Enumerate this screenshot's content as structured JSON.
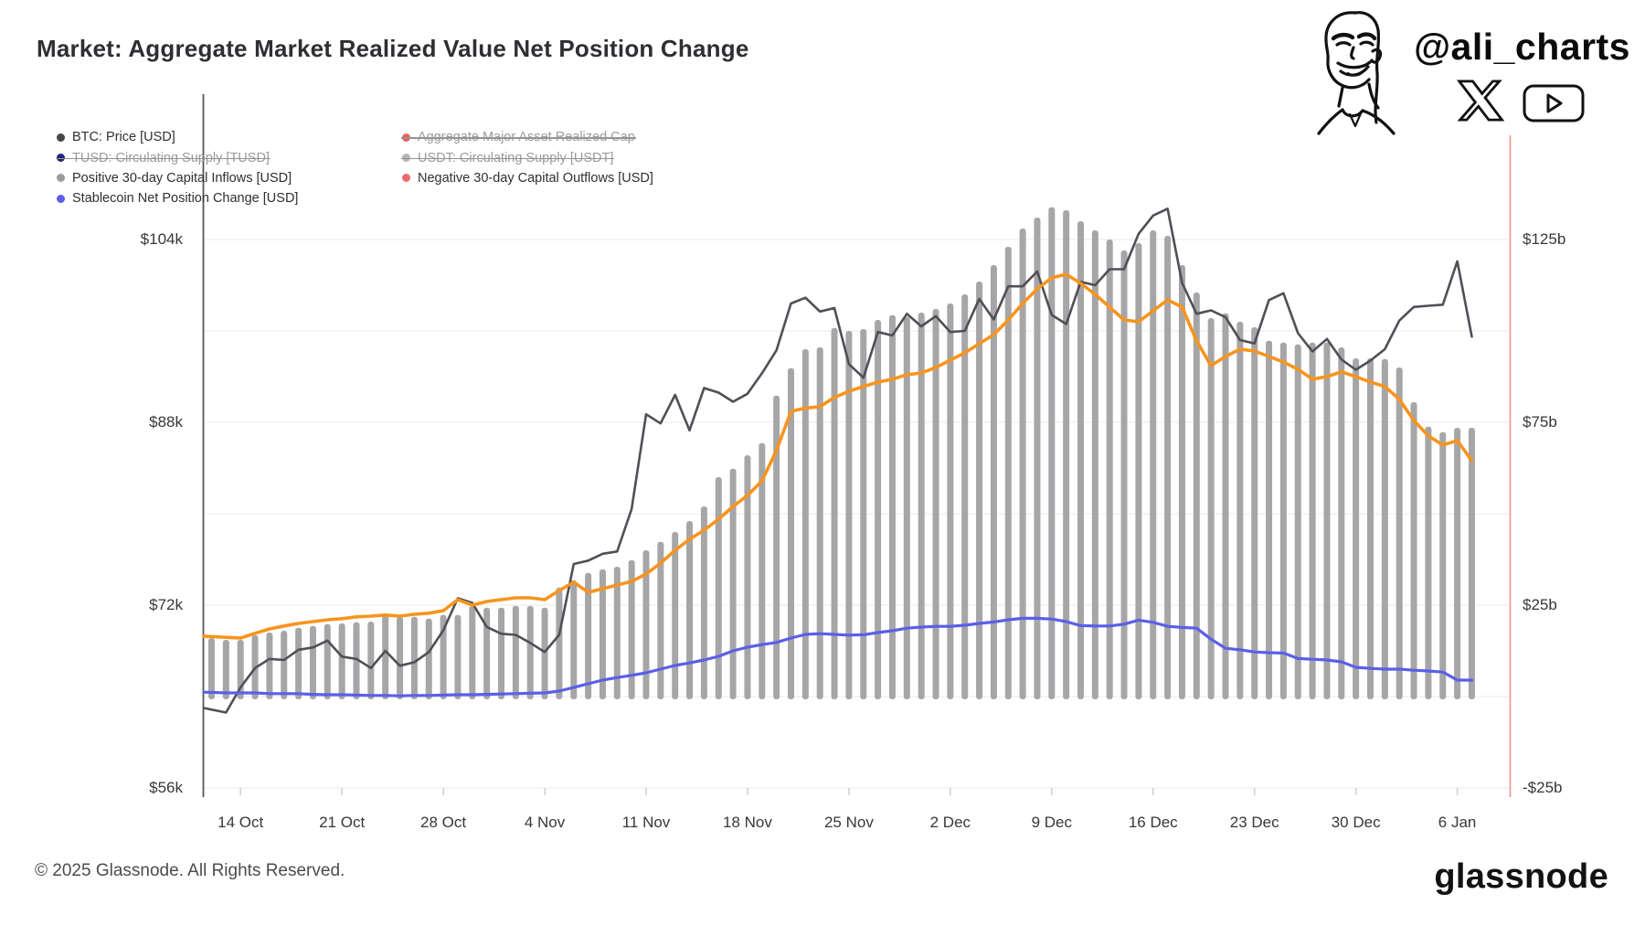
{
  "header": {
    "title": "Market: Aggregate Market Realized Value Net Position Change"
  },
  "branding": {
    "handle": "@ali_charts",
    "icons": [
      "face-sketch-icon",
      "x-logo-icon",
      "youtube-logo-icon"
    ]
  },
  "footer": {
    "copyright": "© 2025 Glassnode. All Rights Reserved.",
    "brand": "glassnode"
  },
  "colors": {
    "background": "#ffffff",
    "btc_line": "#4f4f56",
    "orange_line": "#f7941d",
    "stablecoin_line": "#5a5fe8",
    "inflow_bars": "#a6a6a8",
    "negative_bars": "#f26969",
    "gridline": "#ededed",
    "left_spine": "#55555a",
    "right_spine": "#e98d8d",
    "struck_legend_text": "#9b9b9b"
  },
  "legend": [
    {
      "id": "btc-price",
      "label": "BTC: Price [USD]",
      "color": "#46464c",
      "struck": false,
      "col": 1
    },
    {
      "id": "aggregate-realized-cap",
      "label": "Aggregate Major Asset Realized Cap",
      "color": "#ed5e5e",
      "struck": true,
      "col": 2
    },
    {
      "id": "tusd-supply",
      "label": "TUSD: Circulating Supply [TUSD]",
      "color": "#24247a",
      "struck": true,
      "col": 1
    },
    {
      "id": "usdt-supply",
      "label": "USDT: Circulating Supply [USDT]",
      "color": "#b5b5b5",
      "struck": true,
      "col": 2
    },
    {
      "id": "positive-inflows",
      "label": "Positive 30-day Capital Inflows [USD]",
      "color": "#9c9c9e",
      "struck": false,
      "col": 1
    },
    {
      "id": "negative-outflows",
      "label": "Negative 30-day Capital Outflows [USD]",
      "color": "#f26969",
      "struck": false,
      "col": 2
    },
    {
      "id": "stablecoin-npc",
      "label": "Stablecoin Net Position Change [USD]",
      "color": "#5a5fe8",
      "struck": false,
      "col": 1
    }
  ],
  "chart_data": {
    "type": "mixed bar + line, dual y-axis, daily data",
    "title": "Market: Aggregate Market Realized Value Net Position Change",
    "x_start_date": "2024-10-12",
    "x_end_date": "2025-01-07",
    "grid": true,
    "legend_position": "top-left, two columns, struck items are disabled series",
    "x_ticks": [
      {
        "label": "14 Oct",
        "index": 2
      },
      {
        "label": "21 Oct",
        "index": 9
      },
      {
        "label": "28 Oct",
        "index": 16
      },
      {
        "label": "4 Nov",
        "index": 23
      },
      {
        "label": "11 Nov",
        "index": 30
      },
      {
        "label": "18 Nov",
        "index": 37
      },
      {
        "label": "25 Nov",
        "index": 44
      },
      {
        "label": "2 Dec",
        "index": 51
      },
      {
        "label": "9 Dec",
        "index": 58
      },
      {
        "label": "16 Dec",
        "index": 65
      },
      {
        "label": "23 Dec",
        "index": 72
      },
      {
        "label": "30 Dec",
        "index": 79
      },
      {
        "label": "6 Jan",
        "index": 86
      }
    ],
    "left_axis": {
      "title": "BTC price, USD",
      "ticks": [
        {
          "label": "$104k",
          "value_k": 104
        },
        {
          "label": "$88k",
          "value_k": 88
        },
        {
          "label": "$72k",
          "value_k": 72
        },
        {
          "label": "$56k",
          "value_k": 56
        }
      ],
      "gridline_values_k": [
        104,
        96,
        88,
        80,
        72,
        64,
        56
      ],
      "range_k": [
        56,
        104
      ]
    },
    "right_axis": {
      "title": "capital flows, USD billions",
      "ticks": [
        {
          "label": "$125b",
          "value_b": 125
        },
        {
          "label": "$75b",
          "value_b": 75
        },
        {
          "label": "$25b",
          "value_b": 25
        },
        {
          "label": "-$25b",
          "value_b": -25
        }
      ],
      "range_b": [
        -25,
        125
      ]
    },
    "series": [
      {
        "id": "btc-price",
        "name": "BTC: Price [USD]",
        "type": "line",
        "axis": "left",
        "unit": "USD thousands",
        "color": "#4f4f56",
        "values": [
          63.0,
          62.6,
          64.8,
          66.5,
          67.3,
          67.2,
          68.1,
          68.3,
          68.9,
          67.5,
          67.3,
          66.5,
          68.0,
          66.7,
          67.0,
          67.9,
          69.8,
          72.6,
          72.2,
          70.1,
          69.5,
          69.4,
          68.7,
          67.9,
          69.4,
          75.6,
          75.9,
          76.5,
          76.7,
          80.4,
          88.7,
          87.9,
          90.4,
          87.3,
          91.0,
          90.6,
          89.8,
          90.5,
          92.3,
          94.3,
          98.4,
          98.9,
          97.7,
          98.0,
          93.1,
          91.9,
          95.9,
          95.6,
          97.5,
          96.4,
          97.3,
          95.9,
          96.0,
          98.8,
          97.0,
          99.9,
          99.9,
          101.2,
          97.4,
          96.6,
          100.3,
          100.0,
          101.4,
          101.4,
          104.5,
          106.1,
          106.7,
          100.2,
          97.5,
          97.8,
          97.2,
          95.2,
          94.9,
          98.7,
          99.3,
          95.8,
          94.2,
          95.3,
          93.5,
          92.6,
          93.4,
          94.4,
          96.9,
          98.1,
          98.2,
          98.3,
          102.1,
          95.5
        ]
      },
      {
        "id": "positive-inflows",
        "name": "Positive 30-day Capital Inflows [USD]",
        "type": "bar",
        "axis": "right",
        "unit": "USD billions",
        "color": "#a6a6a8",
        "values": [
          16.0,
          15.5,
          15.5,
          16.8,
          17.5,
          18.0,
          18.8,
          19.3,
          19.8,
          20.0,
          20.3,
          20.5,
          22.3,
          21.8,
          21.8,
          21.3,
          22.3,
          22.3,
          24.8,
          24.3,
          24.3,
          24.8,
          24.8,
          24.3,
          29.8,
          31.8,
          33.8,
          34.8,
          35.5,
          37.3,
          40.0,
          42.3,
          45.0,
          48.0,
          52.0,
          60.0,
          62.3,
          66.0,
          69.3,
          82.3,
          89.8,
          95.0,
          95.5,
          100.8,
          100.0,
          100.5,
          103.0,
          104.3,
          103.8,
          105.0,
          106.0,
          107.5,
          110.0,
          113.5,
          118.0,
          123.0,
          128.0,
          131.0,
          133.8,
          133.0,
          130.0,
          127.5,
          125.0,
          122.0,
          124.0,
          127.5,
          126.0,
          118.0,
          110.5,
          103.5,
          104.8,
          102.5,
          101.0,
          97.3,
          96.8,
          96.3,
          96.8,
          96.8,
          95.5,
          92.5,
          92.5,
          92.3,
          90.0,
          80.5,
          73.8,
          72.3,
          73.5,
          73.5
        ]
      },
      {
        "id": "orange-net-flow",
        "name": "Aggregate 30-day net capital flow (orange line, unlabeled in legend)",
        "type": "line",
        "axis": "right",
        "unit": "USD billions",
        "color": "#f7941d",
        "values": [
          16.5,
          16.2,
          16.0,
          17.3,
          18.5,
          19.3,
          20.0,
          20.5,
          21.0,
          21.3,
          21.8,
          22.0,
          22.3,
          22.0,
          22.5,
          22.8,
          23.5,
          26.5,
          25.0,
          26.0,
          26.5,
          27.0,
          27.0,
          26.5,
          29.0,
          31.3,
          28.5,
          29.5,
          30.5,
          31.5,
          33.5,
          36.5,
          40.0,
          43.0,
          45.5,
          48.5,
          52.0,
          55.0,
          59.0,
          67.3,
          78.0,
          78.9,
          79.3,
          81.8,
          83.5,
          84.8,
          86.0,
          86.8,
          88.0,
          88.5,
          90.0,
          92.0,
          94.0,
          96.5,
          99.0,
          103.0,
          107.5,
          111.5,
          114.5,
          115.5,
          113.0,
          110.0,
          106.5,
          103.0,
          102.5,
          105.5,
          108.5,
          106.5,
          97.3,
          90.5,
          93.0,
          95.0,
          94.5,
          93.0,
          91.5,
          89.5,
          86.8,
          87.5,
          88.8,
          87.5,
          86.0,
          84.8,
          81.3,
          75.5,
          71.3,
          68.8,
          70.0,
          64.5
        ]
      },
      {
        "id": "stablecoin-npc",
        "name": "Stablecoin Net Position Change [USD]",
        "type": "line",
        "axis": "right",
        "unit": "USD billions",
        "color": "#5a5fe8",
        "values": [
          1.2,
          1.0,
          1.0,
          1.0,
          0.8,
          0.8,
          0.8,
          0.6,
          0.5,
          0.5,
          0.4,
          0.3,
          0.3,
          0.2,
          0.3,
          0.3,
          0.4,
          0.5,
          0.5,
          0.6,
          0.7,
          0.8,
          0.9,
          1.0,
          1.5,
          2.5,
          3.5,
          4.5,
          5.2,
          5.8,
          6.5,
          7.5,
          8.5,
          9.2,
          10.0,
          11.0,
          12.5,
          13.5,
          14.2,
          14.8,
          16.0,
          17.0,
          17.2,
          17.0,
          16.8,
          16.9,
          17.5,
          18.0,
          18.7,
          19.0,
          19.2,
          19.2,
          19.5,
          20.0,
          20.4,
          21.0,
          21.4,
          21.4,
          21.2,
          20.5,
          19.4,
          19.3,
          19.3,
          19.8,
          20.9,
          20.3,
          19.2,
          18.9,
          18.7,
          15.7,
          13.2,
          12.8,
          12.2,
          12.0,
          11.9,
          10.4,
          10.2,
          10.0,
          9.5,
          8.0,
          7.7,
          7.5,
          7.5,
          7.2,
          7.0,
          6.7,
          4.5,
          4.5
        ]
      },
      {
        "id": "negative-outflows",
        "name": "Negative 30-day Capital Outflows [USD]",
        "type": "bar",
        "axis": "right",
        "unit": "USD billions",
        "color": "#f26969",
        "values": [],
        "note": "legend entry active but no negative bars visible in this window (all 30-day flows positive)"
      }
    ]
  }
}
